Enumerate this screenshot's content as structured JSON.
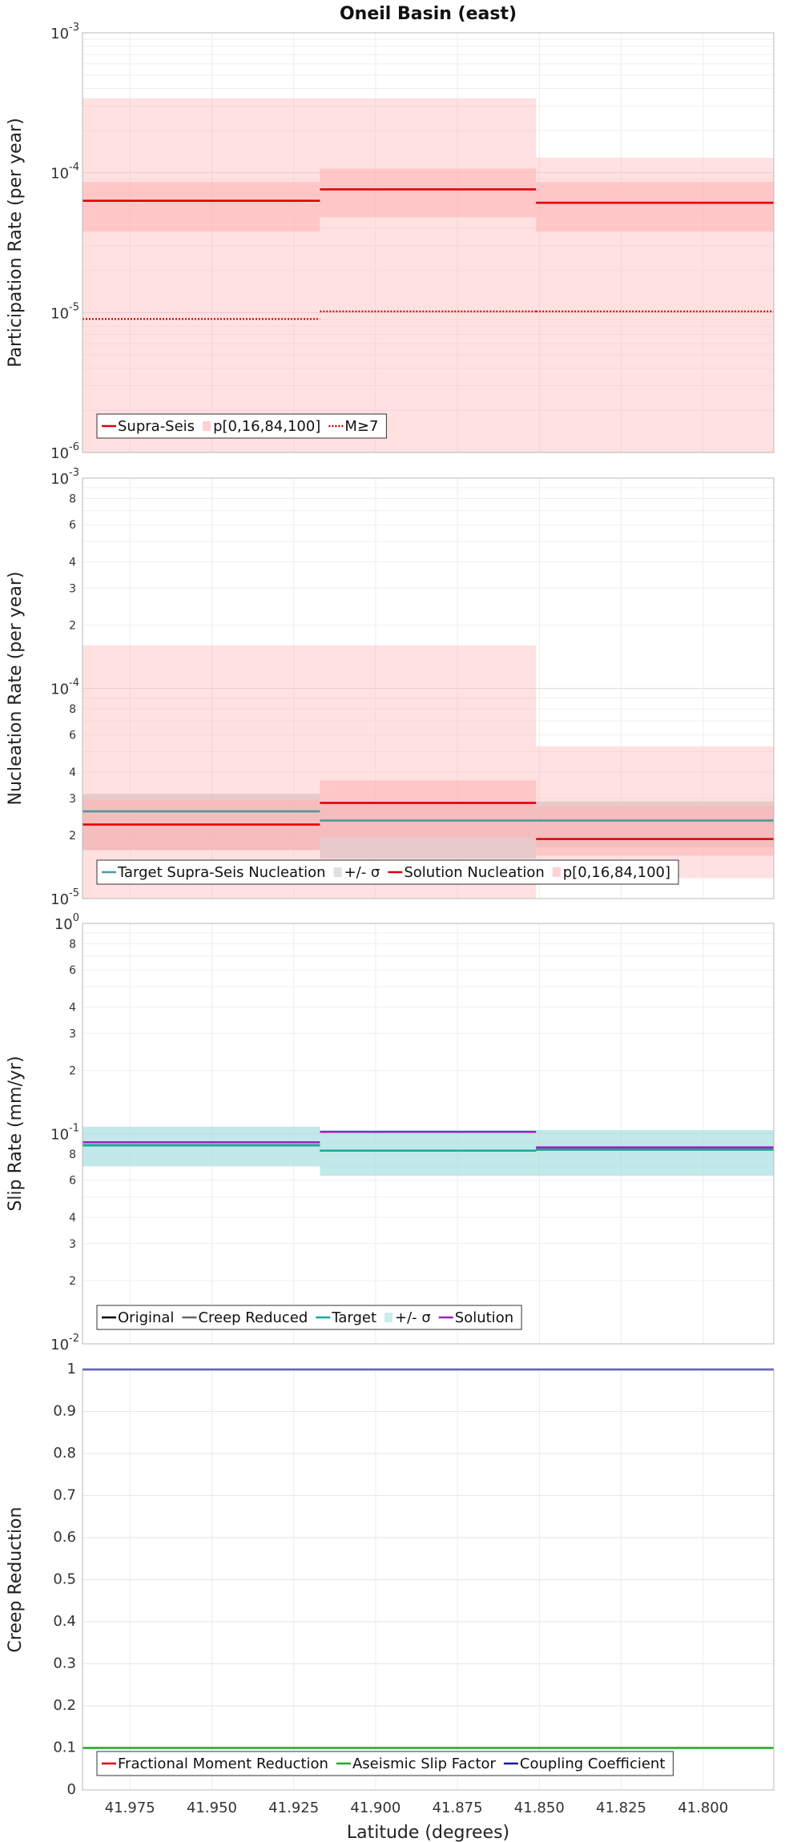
{
  "chart_data": [
    {
      "type": "line",
      "title": "Oneil Basin (east)",
      "ylabel": "Participation Rate (per year)",
      "yscale": "log",
      "ylim": [
        1e-06,
        0.001
      ],
      "xlim": [
        41.9895,
        41.7784
      ],
      "yticks": [
        {
          "v": 0.001,
          "base": "10",
          "exp": "-3"
        },
        {
          "v": 0.0001,
          "base": "10",
          "exp": "-4"
        },
        {
          "v": 1e-05,
          "base": "10",
          "exp": "-5"
        },
        {
          "v": 1e-06,
          "base": "10",
          "exp": "-6"
        }
      ],
      "segments": [
        {
          "x0": 41.9895,
          "x1": 41.917
        },
        {
          "x0": 41.917,
          "x1": 41.851
        },
        {
          "x0": 41.851,
          "x1": 41.7784
        }
      ],
      "series": [
        {
          "name": "Supra-Seis",
          "style": "solid",
          "color": "#e0000a",
          "values": [
            6.3e-05,
            7.6e-05,
            6.1e-05
          ]
        },
        {
          "name": "p[0,16,84,100]",
          "style": "band",
          "color": "#ffb3b3",
          "bands": [
            {
              "lo": [
                1e-06,
                1e-06,
                1e-06
              ],
              "hi": [
                0.00034,
                0.00034,
                0.000128
              ],
              "opacity": 0.4
            },
            {
              "lo": [
                3.8e-05,
                4.8e-05,
                3.8e-05
              ],
              "hi": [
                8.6e-05,
                0.000107,
                8.6e-05
              ],
              "opacity": 0.55
            }
          ]
        },
        {
          "name": "M≥7",
          "style": "dotted",
          "color": "#cc0000",
          "values": [
            9e-06,
            1.02e-05,
            1.02e-05
          ]
        }
      ],
      "legend": {
        "placement": "bottom-left",
        "items": [
          "Supra-Seis",
          "p[0,16,84,100]",
          "M≥7"
        ]
      }
    },
    {
      "type": "line",
      "ylabel": "Nucleation Rate (per year)",
      "yscale": "log",
      "ylim": [
        1e-05,
        0.001
      ],
      "xlim": [
        41.9895,
        41.7784
      ],
      "yticks": [
        {
          "v": 0.001,
          "base": "10",
          "exp": "-3"
        },
        {
          "v": 0.0008,
          "label": "8"
        },
        {
          "v": 0.0006,
          "label": "6"
        },
        {
          "v": 0.0004,
          "label": "4"
        },
        {
          "v": 0.0003,
          "label": "3"
        },
        {
          "v": 0.0002,
          "label": "2"
        },
        {
          "v": 0.0001,
          "base": "10",
          "exp": "-4"
        },
        {
          "v": 8e-05,
          "label": "8"
        },
        {
          "v": 6e-05,
          "label": "6"
        },
        {
          "v": 4e-05,
          "label": "4"
        },
        {
          "v": 3e-05,
          "label": "3"
        },
        {
          "v": 2e-05,
          "label": "2"
        },
        {
          "v": 1e-05,
          "base": "10",
          "exp": "-5"
        }
      ],
      "segments": [
        {
          "x0": 41.9895,
          "x1": 41.917
        },
        {
          "x0": 41.917,
          "x1": 41.851
        },
        {
          "x0": 41.851,
          "x1": 41.7784
        }
      ],
      "series": [
        {
          "name": "Target Supra-Seis Nucleation",
          "style": "solid",
          "color": "#4a9aa0",
          "values": [
            2.6e-05,
            2.35e-05,
            2.35e-05
          ]
        },
        {
          "name": "+/- σ",
          "style": "band",
          "color": "#cccccc",
          "bands": [
            {
              "lo": [
                1.7e-05,
                1.55e-05,
                1.75e-05
              ],
              "hi": [
                3.15e-05,
                2.9e-05,
                2.9e-05
              ],
              "opacity": 0.75
            }
          ]
        },
        {
          "name": "Solution Nucleation",
          "style": "solid",
          "color": "#e0000a",
          "values": [
            2.25e-05,
            2.85e-05,
            1.92e-05
          ]
        },
        {
          "name": "p[0,16,84,100]",
          "style": "band",
          "color": "#ffb3b3",
          "bands": [
            {
              "lo": [
                1e-05,
                1e-05,
                1.25e-05
              ],
              "hi": [
                0.00016,
                0.00016,
                5.3e-05
              ],
              "opacity": 0.4
            },
            {
              "lo": [
                1.7e-05,
                1.95e-05,
                1.6e-05
              ],
              "hi": [
                2.95e-05,
                3.65e-05,
                2.75e-05
              ],
              "opacity": 0.55
            }
          ]
        }
      ],
      "legend": {
        "placement": "bottom-left",
        "items": [
          "Target Supra-Seis Nucleation",
          "+/- σ",
          "Solution Nucleation",
          "p[0,16,84,100]"
        ]
      }
    },
    {
      "type": "line",
      "ylabel": "Slip Rate (mm/yr)",
      "yscale": "log",
      "ylim": [
        0.01,
        1
      ],
      "xlim": [
        41.9895,
        41.7784
      ],
      "yticks": [
        {
          "v": 1,
          "base": "10",
          "exp": "0"
        },
        {
          "v": 0.8,
          "label": "8"
        },
        {
          "v": 0.6,
          "label": "6"
        },
        {
          "v": 0.4,
          "label": "4"
        },
        {
          "v": 0.3,
          "label": "3"
        },
        {
          "v": 0.2,
          "label": "2"
        },
        {
          "v": 0.1,
          "base": "10",
          "exp": "-1"
        },
        {
          "v": 0.08,
          "label": "8"
        },
        {
          "v": 0.06,
          "label": "6"
        },
        {
          "v": 0.04,
          "label": "4"
        },
        {
          "v": 0.03,
          "label": "3"
        },
        {
          "v": 0.02,
          "label": "2"
        },
        {
          "v": 0.01,
          "base": "10",
          "exp": "-2"
        }
      ],
      "segments": [
        {
          "x0": 41.9895,
          "x1": 41.917
        },
        {
          "x0": 41.917,
          "x1": 41.851
        },
        {
          "x0": 41.851,
          "x1": 41.7784
        }
      ],
      "series": [
        {
          "name": "Original",
          "style": "solid",
          "color": "#000000",
          "values": [
            0.088,
            0.083,
            0.084
          ]
        },
        {
          "name": "Creep Reduced",
          "style": "solid",
          "color": "#666666",
          "values": [
            0.088,
            0.083,
            0.084
          ]
        },
        {
          "name": "Target",
          "style": "solid",
          "color": "#1aa89a",
          "values": [
            0.088,
            0.083,
            0.084
          ]
        },
        {
          "name": "+/- σ",
          "style": "band",
          "color": "#a8e0e0",
          "bands": [
            {
              "lo": [
                0.07,
                0.063,
                0.063
              ],
              "hi": [
                0.108,
                0.104,
                0.104
              ],
              "opacity": 0.7
            }
          ]
        },
        {
          "name": "Solution",
          "style": "solid",
          "color": "#a020c0",
          "values": [
            0.091,
            0.102,
            0.086
          ]
        }
      ],
      "legend": {
        "placement": "bottom-left",
        "items": [
          "Original",
          "Creep Reduced",
          "Target",
          "+/- σ",
          "Solution"
        ]
      }
    },
    {
      "type": "line",
      "ylabel": "Creep Reduction",
      "xlabel": "Latitude (degrees)",
      "yscale": "linear",
      "ylim": [
        0,
        1
      ],
      "xlim": [
        41.9895,
        41.7784
      ],
      "yticks": [
        {
          "v": 1,
          "label": "1"
        },
        {
          "v": 0.9,
          "label": "0.9"
        },
        {
          "v": 0.8,
          "label": "0.8"
        },
        {
          "v": 0.7,
          "label": "0.7"
        },
        {
          "v": 0.6,
          "label": "0.6"
        },
        {
          "v": 0.5,
          "label": "0.5"
        },
        {
          "v": 0.4,
          "label": "0.4"
        },
        {
          "v": 0.3,
          "label": "0.3"
        },
        {
          "v": 0.2,
          "label": "0.2"
        },
        {
          "v": 0.1,
          "label": "0.1"
        },
        {
          "v": 0,
          "label": "0"
        }
      ],
      "xticks": [
        {
          "v": 41.975,
          "label": "41.975"
        },
        {
          "v": 41.95,
          "label": "41.950"
        },
        {
          "v": 41.925,
          "label": "41.925"
        },
        {
          "v": 41.9,
          "label": "41.900"
        },
        {
          "v": 41.875,
          "label": "41.875"
        },
        {
          "v": 41.85,
          "label": "41.850"
        },
        {
          "v": 41.825,
          "label": "41.825"
        },
        {
          "v": 41.8,
          "label": "41.800"
        }
      ],
      "segments": [
        {
          "x0": 41.9895,
          "x1": 41.7784
        }
      ],
      "series": [
        {
          "name": "Fractional Moment Reduction",
          "style": "solid",
          "color": "#e0000a",
          "values": [
            0
          ]
        },
        {
          "name": "Aseismic Slip Factor",
          "style": "solid",
          "color": "#22aa22",
          "values": [
            0.1
          ]
        },
        {
          "name": "Coupling Coefficient",
          "style": "solid",
          "color": "#1a1aa0",
          "values": [
            1.0
          ]
        }
      ],
      "legend": {
        "placement": "bottom-left",
        "items": [
          "Fractional Moment Reduction",
          "Aseismic Slip Factor",
          "Coupling Coefficient"
        ]
      }
    }
  ]
}
